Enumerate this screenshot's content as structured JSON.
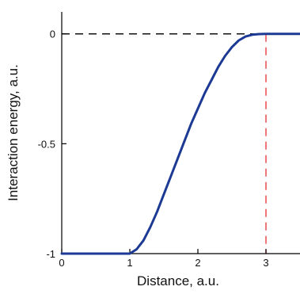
{
  "chart_data": {
    "type": "line",
    "title": "",
    "xlabel": "Distance, a.u.",
    "ylabel": "Interaction energy, a.u.",
    "xlim": [
      0,
      3.5
    ],
    "ylim": [
      -1,
      0.1
    ],
    "x_ticks": [
      0,
      1,
      2,
      3
    ],
    "x_tick_labels": [
      "0",
      "1",
      "2",
      "3"
    ],
    "y_ticks": [
      0,
      -0.5,
      -1
    ],
    "y_tick_labels": [
      "0",
      "-0.5",
      "-1"
    ],
    "grid": false,
    "series": [
      {
        "color": "#1c3a94",
        "x": [
          0,
          1.0,
          1.1,
          1.2,
          1.3,
          1.4,
          1.5,
          1.6,
          1.7,
          1.8,
          1.9,
          2.0,
          2.1,
          2.2,
          2.3,
          2.4,
          2.5,
          2.6,
          2.7,
          2.8,
          2.9,
          3.0,
          3.5
        ],
        "y": [
          -1,
          -1,
          -0.98,
          -0.94,
          -0.88,
          -0.81,
          -0.73,
          -0.65,
          -0.57,
          -0.49,
          -0.41,
          -0.34,
          -0.27,
          -0.21,
          -0.15,
          -0.1,
          -0.06,
          -0.03,
          -0.012,
          -0.004,
          -0.001,
          0,
          0
        ]
      }
    ],
    "reference_lines": [
      {
        "orientation": "horizontal",
        "value": 0,
        "color": "#111111",
        "style": "dashed"
      },
      {
        "orientation": "vertical",
        "value": 3,
        "color": "#e84a4a",
        "style": "dashed"
      }
    ]
  }
}
